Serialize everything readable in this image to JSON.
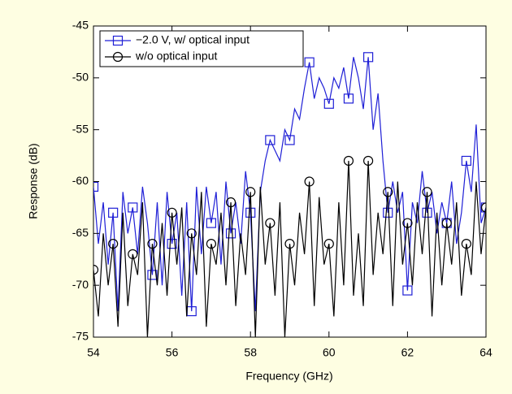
{
  "chart_data": {
    "type": "line",
    "xlabel": "Frequency (GHz)",
    "ylabel": "Response (dB)",
    "xlim": [
      54,
      64
    ],
    "xticks": [
      54,
      56,
      58,
      60,
      62,
      64
    ],
    "ylim": [
      -75,
      -45
    ],
    "yticks": [
      -75,
      -70,
      -65,
      -60,
      -55,
      -50,
      -45
    ],
    "legend": "upper left",
    "marker_every": 4,
    "x": [
      54,
      54.125,
      54.25,
      54.375,
      54.5,
      54.625,
      54.75,
      54.875,
      55,
      55.125,
      55.25,
      55.375,
      55.5,
      55.625,
      55.75,
      55.875,
      56,
      56.125,
      56.25,
      56.375,
      56.5,
      56.625,
      56.75,
      56.875,
      57,
      57.125,
      57.25,
      57.375,
      57.5,
      57.625,
      57.75,
      57.875,
      58,
      58.125,
      58.25,
      58.375,
      58.5,
      58.625,
      58.75,
      58.875,
      59,
      59.125,
      59.25,
      59.375,
      59.5,
      59.625,
      59.75,
      59.875,
      60,
      60.125,
      60.25,
      60.375,
      60.5,
      60.625,
      60.75,
      60.875,
      61,
      61.125,
      61.25,
      61.375,
      61.5,
      61.625,
      61.75,
      61.875,
      62,
      62.125,
      62.25,
      62.375,
      62.5,
      62.625,
      62.75,
      62.875,
      63,
      63.125,
      63.25,
      63.375,
      63.5,
      63.625,
      63.75,
      63.875,
      64
    ],
    "series": [
      {
        "name": "−2.0 V, w/ optical input",
        "color": "#1f1fd6",
        "marker": "square",
        "values": [
          -60.5,
          -66,
          -62,
          -68,
          -63,
          -72.5,
          -61,
          -65,
          -62.5,
          -67,
          -60.5,
          -64,
          -69,
          -62,
          -70,
          -61,
          -66,
          -63,
          -71,
          -62,
          -72.5,
          -60.5,
          -67,
          -60.5,
          -64,
          -61,
          -68,
          -60,
          -65,
          -62,
          -66,
          -59,
          -63,
          -72.5,
          -61,
          -58,
          -56,
          -57,
          -58,
          -55,
          -56,
          -53,
          -54,
          -51,
          -48.5,
          -52,
          -50,
          -51,
          -52.5,
          -50,
          -51,
          -49,
          -52,
          -48,
          -50,
          -53,
          -48,
          -55,
          -51.5,
          -58,
          -63,
          -60,
          -63,
          -61,
          -70.5,
          -62,
          -64,
          -59,
          -63,
          -61,
          -65,
          -62,
          -64,
          -60,
          -66,
          -63,
          -58,
          -61,
          -54.5,
          -64,
          -62.5
        ]
      },
      {
        "name": "w/o optical input",
        "color": "#000000",
        "marker": "circle",
        "values": [
          -68.5,
          -73,
          -65,
          -70,
          -66,
          -74,
          -63,
          -72,
          -67,
          -69,
          -62,
          -75,
          -66,
          -70,
          -64,
          -71,
          -63,
          -68,
          -62.5,
          -73,
          -65,
          -69,
          -61,
          -74,
          -66,
          -68,
          -63,
          -70,
          -62,
          -72,
          -65,
          -69,
          -61,
          -75,
          -60.5,
          -68,
          -64,
          -71,
          -62,
          -75,
          -66,
          -70,
          -63,
          -67,
          -60,
          -72,
          -61.5,
          -68,
          -66,
          -73,
          -62,
          -70,
          -58,
          -71,
          -65,
          -72,
          -58,
          -69,
          -63,
          -67,
          -61,
          -72,
          -60,
          -68,
          -64,
          -70,
          -62,
          -67,
          -61,
          -73,
          -63,
          -70,
          -64,
          -68,
          -62,
          -71,
          -66,
          -69,
          -60,
          -67,
          -62.5
        ]
      }
    ]
  }
}
